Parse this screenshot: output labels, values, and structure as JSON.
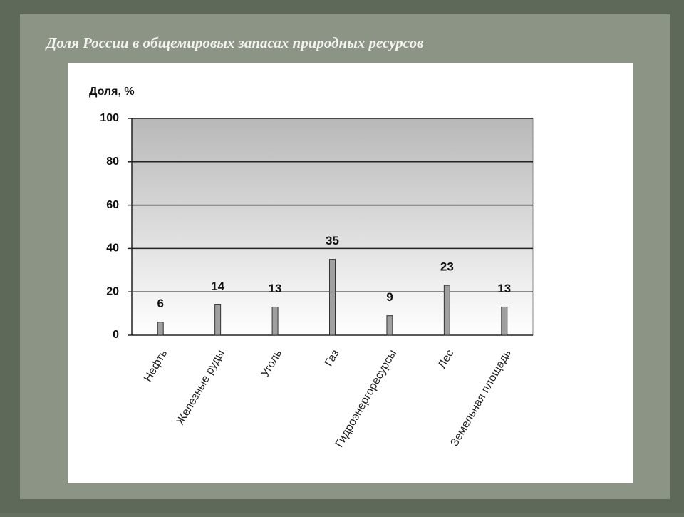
{
  "chart_data": {
    "type": "bar",
    "title": "Доля России в общемировых запасах природных ресурсов",
    "y_label": "Доля, %",
    "categories": [
      "Нефть",
      "Железные руды",
      "Уголь",
      "Газ",
      "Гидроэнергоресурсы",
      "Лес",
      "Земельная площадь"
    ],
    "values": [
      6,
      14,
      13,
      35,
      9,
      23,
      13
    ],
    "color": "#a0a0a0",
    "ylim": [
      0,
      100
    ],
    "yticks": [
      0,
      20,
      40,
      60,
      80,
      100
    ],
    "grid": true
  }
}
